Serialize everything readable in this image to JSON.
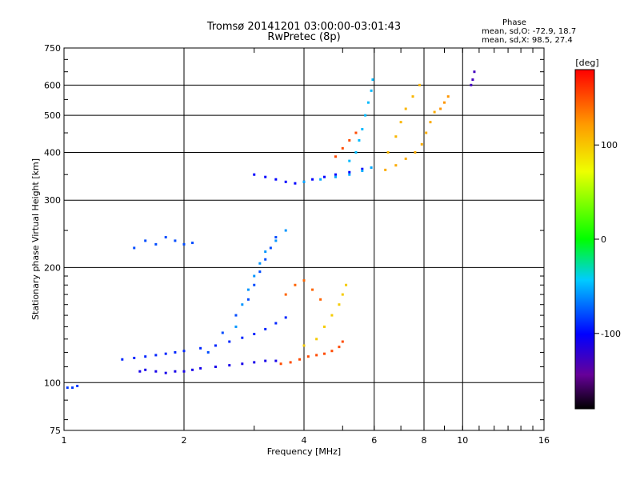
{
  "chart_data": {
    "type": "scatter",
    "title": "Tromsø 20141201 03:00:00-03:01:43",
    "subtitle": "RwPretec (8p)",
    "xlabel": "Frequency [MHz]",
    "ylabel": "Stationary phase Virtual Height [km]",
    "xscale": "log",
    "yscale": "log",
    "xlim": [
      1,
      16
    ],
    "ylim": [
      75,
      750
    ],
    "xticks": [
      1,
      2,
      4,
      6,
      8,
      10,
      16
    ],
    "xticks_major": [
      2,
      4,
      6,
      8,
      10
    ],
    "yticks": [
      75,
      100,
      200,
      300,
      400,
      500,
      600,
      750
    ],
    "yticks_major": [
      100,
      200,
      300,
      400,
      500,
      600
    ],
    "grid": true,
    "stats": {
      "heading": "Phase",
      "line_o": "mean, sd,O: -72.9, 18.7",
      "line_x": "mean, sd,X:  98.5, 27.4"
    },
    "colorbar": {
      "label": "[deg]",
      "range": [
        -180,
        180
      ],
      "ticks": [
        100,
        0,
        -100
      ],
      "colormap": "rainbow"
    },
    "traces": [
      {
        "name": "",
        "points": [
          [
            1.55,
            107
          ],
          [
            1.6,
            108
          ],
          [
            1.7,
            107
          ],
          [
            1.8,
            106
          ],
          [
            1.9,
            107
          ],
          [
            2.0,
            107
          ],
          [
            2.1,
            108
          ],
          [
            2.2,
            109
          ],
          [
            2.4,
            110
          ],
          [
            2.6,
            111
          ],
          [
            2.8,
            112
          ],
          [
            3.0,
            113
          ],
          [
            3.2,
            114
          ],
          [
            3.4,
            114
          ]
        ],
        "phase": -110
      },
      {
        "name": "",
        "points": [
          [
            1.4,
            115
          ],
          [
            1.5,
            116
          ],
          [
            1.6,
            117
          ],
          [
            1.7,
            118
          ],
          [
            1.8,
            119
          ],
          [
            1.9,
            120
          ],
          [
            2.0,
            121
          ],
          [
            2.2,
            123
          ],
          [
            2.4,
            125
          ],
          [
            2.6,
            128
          ],
          [
            2.8,
            131
          ],
          [
            3.0,
            134
          ],
          [
            3.2,
            138
          ],
          [
            3.4,
            143
          ],
          [
            3.6,
            148
          ]
        ],
        "phase": -90
      },
      {
        "name": "",
        "points": [
          [
            2.3,
            120
          ],
          [
            2.5,
            135
          ],
          [
            2.7,
            150
          ],
          [
            2.9,
            165
          ],
          [
            3.0,
            180
          ],
          [
            3.1,
            195
          ],
          [
            3.2,
            210
          ],
          [
            3.3,
            225
          ],
          [
            3.4,
            240
          ]
        ],
        "phase": -80
      },
      {
        "name": "",
        "points": [
          [
            2.7,
            140
          ],
          [
            2.8,
            160
          ],
          [
            2.9,
            175
          ],
          [
            3.0,
            190
          ],
          [
            3.1,
            205
          ],
          [
            3.2,
            220
          ],
          [
            3.4,
            235
          ],
          [
            3.6,
            250
          ]
        ],
        "phase": -60
      },
      {
        "name": "",
        "points": [
          [
            3.5,
            112
          ],
          [
            3.7,
            113
          ],
          [
            3.9,
            115
          ],
          [
            4.1,
            117
          ],
          [
            4.3,
            118
          ],
          [
            4.5,
            119
          ],
          [
            4.7,
            121
          ],
          [
            4.9,
            124
          ],
          [
            5.0,
            128
          ]
        ],
        "phase": 150
      },
      {
        "name": "",
        "points": [
          [
            4.0,
            125
          ],
          [
            4.3,
            130
          ],
          [
            4.5,
            140
          ],
          [
            4.7,
            150
          ],
          [
            4.9,
            160
          ],
          [
            5.0,
            170
          ],
          [
            5.1,
            180
          ]
        ],
        "phase": 95
      },
      {
        "name": "",
        "points": [
          [
            3.6,
            170
          ],
          [
            3.8,
            180
          ],
          [
            4.0,
            185
          ],
          [
            4.2,
            175
          ],
          [
            4.4,
            165
          ]
        ],
        "phase": 140
      },
      {
        "name": "",
        "points": [
          [
            1.5,
            225
          ],
          [
            1.6,
            235
          ],
          [
            1.7,
            230
          ],
          [
            1.8,
            240
          ],
          [
            1.9,
            235
          ],
          [
            2.0,
            230
          ],
          [
            2.1,
            232
          ]
        ],
        "phase": -80
      },
      {
        "name": "",
        "points": [
          [
            3.0,
            350
          ],
          [
            3.2,
            345
          ],
          [
            3.4,
            340
          ],
          [
            3.6,
            335
          ],
          [
            3.8,
            332
          ],
          [
            4.0,
            335
          ],
          [
            4.2,
            340
          ],
          [
            4.5,
            345
          ],
          [
            4.8,
            350
          ],
          [
            5.2,
            355
          ],
          [
            5.6,
            362
          ]
        ],
        "phase": -100
      },
      {
        "name": "",
        "points": [
          [
            4.0,
            335
          ],
          [
            4.4,
            340
          ],
          [
            4.8,
            345
          ],
          [
            5.2,
            350
          ],
          [
            5.6,
            358
          ],
          [
            5.9,
            365
          ]
        ],
        "phase": -55
      },
      {
        "name": "",
        "points": [
          [
            5.2,
            380
          ],
          [
            5.4,
            400
          ],
          [
            5.5,
            430
          ],
          [
            5.6,
            460
          ],
          [
            5.7,
            500
          ],
          [
            5.8,
            540
          ],
          [
            5.9,
            580
          ],
          [
            5.95,
            620
          ]
        ],
        "phase": -50
      },
      {
        "name": "",
        "points": [
          [
            4.8,
            390
          ],
          [
            5.0,
            410
          ],
          [
            5.2,
            430
          ],
          [
            5.4,
            450
          ]
        ],
        "phase": 150
      },
      {
        "name": "",
        "points": [
          [
            6.4,
            360
          ],
          [
            6.8,
            370
          ],
          [
            7.2,
            385
          ],
          [
            7.6,
            400
          ],
          [
            7.9,
            420
          ],
          [
            8.1,
            450
          ],
          [
            8.3,
            480
          ],
          [
            8.5,
            510
          ]
        ],
        "phase": 110
      },
      {
        "name": "",
        "points": [
          [
            6.5,
            400
          ],
          [
            6.8,
            440
          ],
          [
            7.0,
            480
          ],
          [
            7.2,
            520
          ],
          [
            7.5,
            560
          ],
          [
            7.8,
            600
          ]
        ],
        "phase": 105
      },
      {
        "name": "",
        "points": [
          [
            8.8,
            520
          ],
          [
            9.0,
            540
          ],
          [
            9.2,
            560
          ]
        ],
        "phase": 120
      },
      {
        "name": "",
        "points": [
          [
            10.5,
            600
          ],
          [
            10.6,
            620
          ],
          [
            10.7,
            650
          ]
        ],
        "phase": -130
      },
      {
        "name": "",
        "points": [
          [
            1.02,
            97
          ],
          [
            1.05,
            97
          ],
          [
            1.08,
            98
          ]
        ],
        "phase": -85
      }
    ]
  }
}
